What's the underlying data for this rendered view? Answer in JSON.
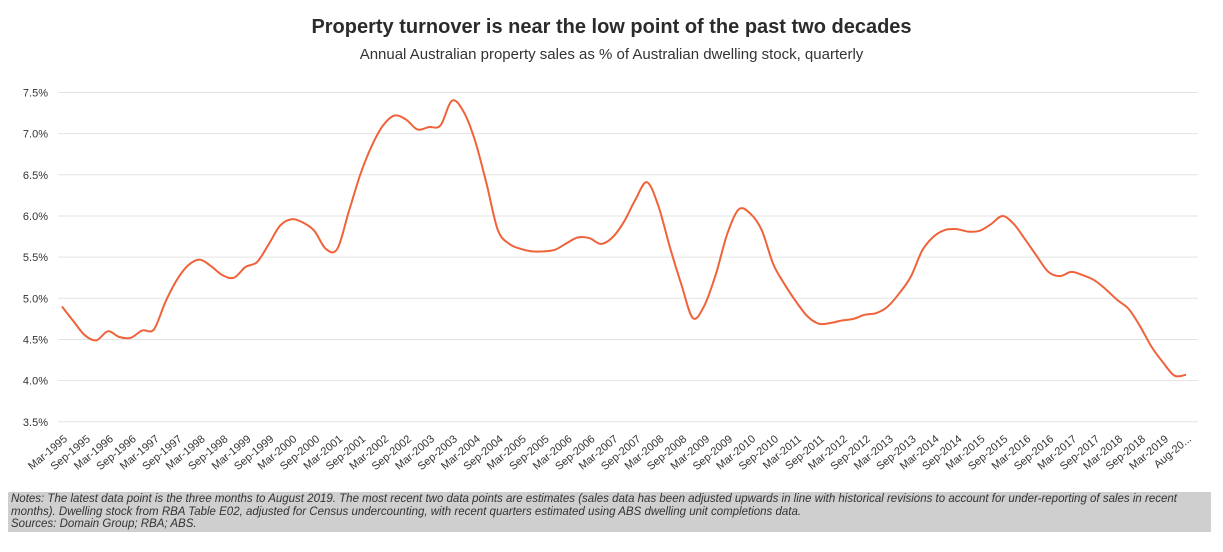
{
  "chart_data": {
    "type": "line",
    "title": "Property turnover is near the low point of the past two decades",
    "subtitle": "Annual Australian property sales as % of Australian dwelling stock, quarterly",
    "xlabel": "",
    "ylabel": "",
    "ylim": [
      3.4,
      7.7
    ],
    "y_ticks": [
      "3.5%",
      "4.0%",
      "4.5%",
      "5.0%",
      "5.5%",
      "6.0%",
      "6.5%",
      "7.0%",
      "7.5%"
    ],
    "y_tick_values": [
      3.5,
      4.0,
      4.5,
      5.0,
      5.5,
      6.0,
      6.5,
      7.0,
      7.5
    ],
    "grid": true,
    "legend": "none",
    "line_color": "#f0623a",
    "x_ticks": [
      "Mar-1995",
      "Sep-1995",
      "Mar-1996",
      "Sep-1996",
      "Mar-1997",
      "Sep-1997",
      "Mar-1998",
      "Sep-1998",
      "Mar-1999",
      "Sep-1999",
      "Mar-2000",
      "Sep-2000",
      "Mar-2001",
      "Sep-2001",
      "Mar-2002",
      "Sep-2002",
      "Mar-2003",
      "Sep-2003",
      "Mar-2004",
      "Sep-2004",
      "Mar-2005",
      "Sep-2005",
      "Mar-2006",
      "Sep-2006",
      "Mar-2007",
      "Sep-2007",
      "Mar-2008",
      "Sep-2008",
      "Mar-2009",
      "Sep-2009",
      "Mar-2010",
      "Sep-2010",
      "Mar-2011",
      "Sep-2011",
      "Mar-2012",
      "Sep-2012",
      "Mar-2013",
      "Sep-2013",
      "Mar-2014",
      "Sep-2014",
      "Mar-2015",
      "Sep-2015",
      "Mar-2016",
      "Sep-2016",
      "Mar-2017",
      "Sep-2017",
      "Mar-2018",
      "Sep-2018",
      "Mar-2019",
      "Aug-20..."
    ],
    "values": [
      4.9,
      4.72,
      4.55,
      4.49,
      4.6,
      4.53,
      4.52,
      4.61,
      4.62,
      4.95,
      5.22,
      5.4,
      5.47,
      5.39,
      5.28,
      5.25,
      5.38,
      5.44,
      5.65,
      5.88,
      5.96,
      5.92,
      5.82,
      5.6,
      5.6,
      6.05,
      6.5,
      6.85,
      7.1,
      7.22,
      7.17,
      7.05,
      7.08,
      7.1,
      7.4,
      7.27,
      6.92,
      6.4,
      5.83,
      5.66,
      5.6,
      5.57,
      5.57,
      5.59,
      5.67,
      5.74,
      5.73,
      5.66,
      5.74,
      5.93,
      6.2,
      6.41,
      6.12,
      5.62,
      5.17,
      4.76,
      4.91,
      5.29,
      5.78,
      6.08,
      6.03,
      5.83,
      5.42,
      5.17,
      4.96,
      4.78,
      4.69,
      4.7,
      4.73,
      4.75,
      4.8,
      4.82,
      4.9,
      5.06,
      5.26,
      5.58,
      5.75,
      5.83,
      5.84,
      5.81,
      5.82,
      5.9,
      6.0,
      5.9,
      5.71,
      5.51,
      5.32,
      5.27,
      5.32,
      5.28,
      5.22,
      5.11,
      4.98,
      4.87,
      4.66,
      4.41,
      4.22,
      4.06,
      4.07
    ]
  },
  "notes": {
    "line1": "Notes: The latest data point is the three months to August 2019. The most recent two data points are estimates (sales data has been adjusted upwards in line with historical revisions to account for under-reporting of sales in recent",
    "line2": "months). Dwelling stock from RBA Table E02, adjusted for Census undercounting, with recent quarters estimated using ABS dwelling unit completions data.",
    "line3": "Sources: Domain Group; RBA; ABS."
  }
}
